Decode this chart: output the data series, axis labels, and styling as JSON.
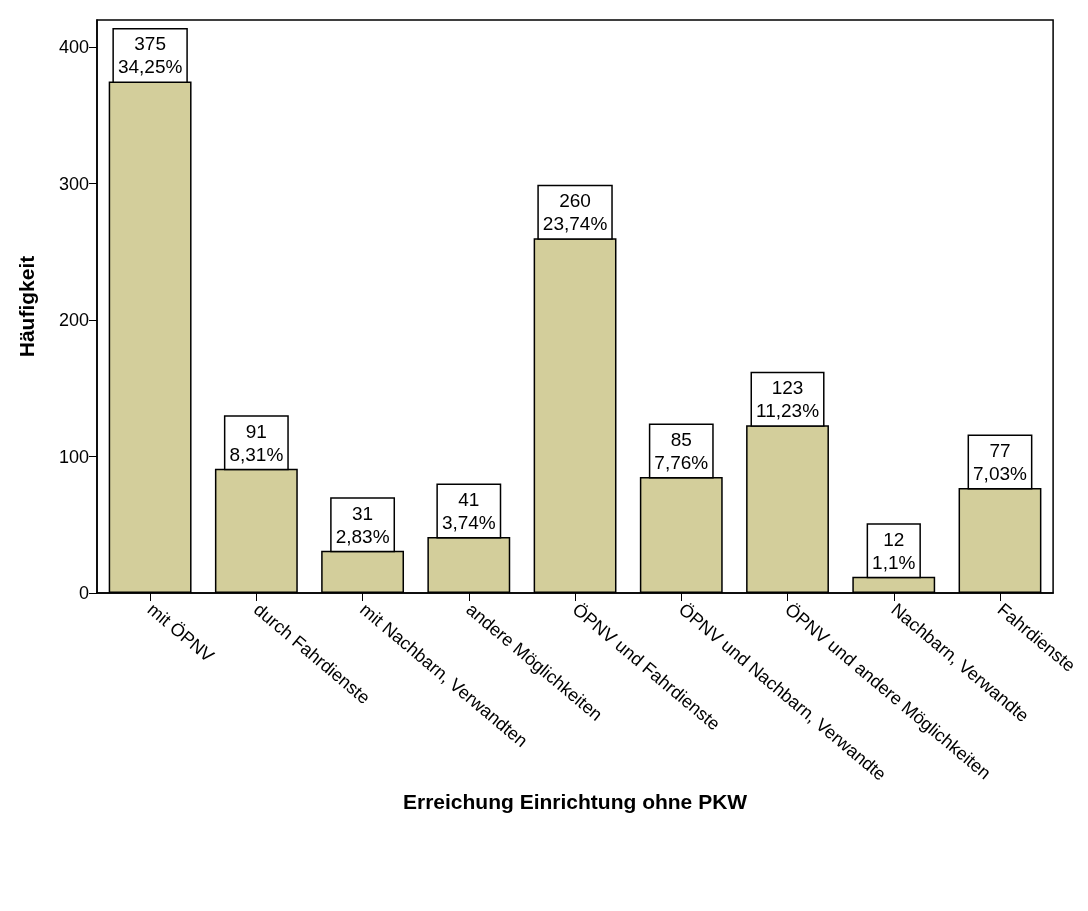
{
  "chart_data": {
    "type": "bar",
    "xlabel": "Erreichung Einrichtung ohne PKW",
    "ylabel": "Häufigkeit",
    "categories": [
      "mit ÖPNV",
      "durch Fahrdienste",
      "mit Nachbarn, Verwandten",
      "andere Möglichkeiten",
      "ÖPNV und Fahrdienste",
      "ÖPNV und Nachbarn, Verwandte",
      "ÖPNV und andere Möglichkeiten",
      "Nachbarn, Verwandte",
      "Fahrdienste"
    ],
    "values": [
      375,
      91,
      31,
      41,
      260,
      85,
      123,
      12,
      77
    ],
    "value_labels": [
      "375\n34,25%",
      "91\n8,31%",
      "31\n2,83%",
      "41\n3,74%",
      "260\n23,74%",
      "85\n7,76%",
      "123\n11,23%",
      "12\n1,1%",
      "77\n7,03%"
    ],
    "color": "#d3ce9b",
    "ylim": [
      0,
      420
    ],
    "yticks": [
      0,
      100,
      200,
      300,
      400
    ],
    "grid": false
  }
}
